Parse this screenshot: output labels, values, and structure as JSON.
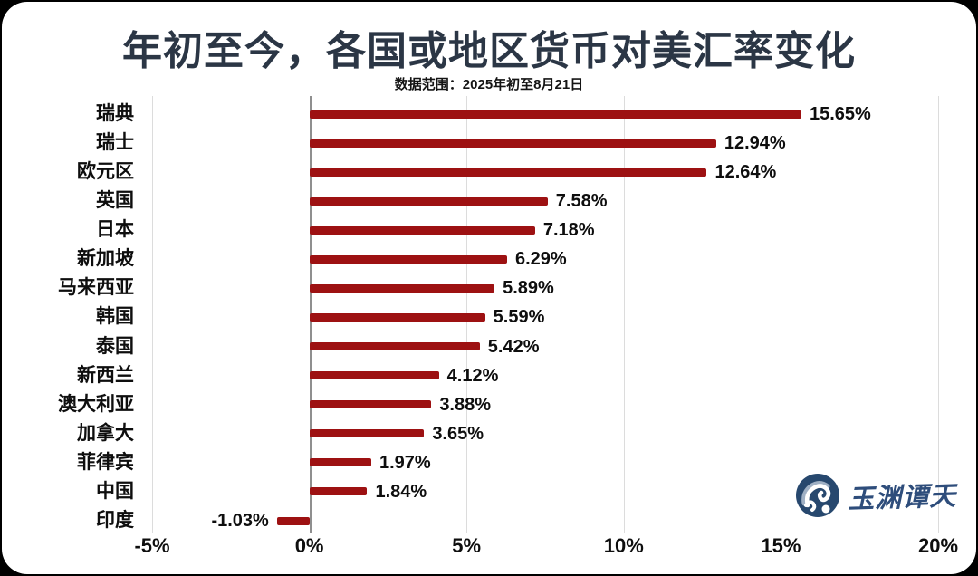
{
  "header": {
    "title": "年初至今，各国或地区货币对美汇率变化",
    "subtitle": "数据范围：2025年初至8月21日"
  },
  "chart_data": {
    "type": "bar",
    "orientation": "horizontal",
    "title": "年初至今，各国或地区货币对美汇率变化",
    "subtitle": "数据范围：2025年初至8月21日",
    "categories": [
      "瑞典",
      "瑞士",
      "欧元区",
      "英国",
      "日本",
      "新加坡",
      "马来西亚",
      "韩国",
      "泰国",
      "新西兰",
      "澳大利亚",
      "加拿大",
      "菲律宾",
      "中国",
      "印度"
    ],
    "values": [
      15.65,
      12.94,
      12.64,
      7.58,
      7.18,
      6.29,
      5.89,
      5.59,
      5.42,
      4.12,
      3.88,
      3.65,
      1.97,
      1.84,
      -1.03
    ],
    "value_labels": [
      "15.65%",
      "12.94%",
      "12.64%",
      "7.58%",
      "7.18%",
      "6.29%",
      "5.89%",
      "5.59%",
      "5.42%",
      "4.12%",
      "3.88%",
      "3.65%",
      "1.97%",
      "1.84%",
      "-1.03%"
    ],
    "xlim": [
      -5,
      20
    ],
    "x_ticks": [
      {
        "value": -5,
        "label": "-5%"
      },
      {
        "value": 0,
        "label": "0%"
      },
      {
        "value": 5,
        "label": "5%"
      },
      {
        "value": 10,
        "label": "10%"
      },
      {
        "value": 15,
        "label": "15%"
      },
      {
        "value": 20,
        "label": "20%"
      }
    ],
    "grid": true,
    "legend": false,
    "value_labels_shown": true
  },
  "colors": {
    "bar_red": "#9d1112",
    "title_navy": "#2b3645",
    "text_black": "#0e0e0e",
    "grid_line": "#dcdcdc",
    "zero_line": "#8f8f8f",
    "logo_blue": "#2e4d7b",
    "canvas": "#ffffff",
    "frame": "#000000"
  },
  "watermark": {
    "logo_icon": "yuyuan-tantian-logo",
    "text": "玉渊谭天"
  }
}
